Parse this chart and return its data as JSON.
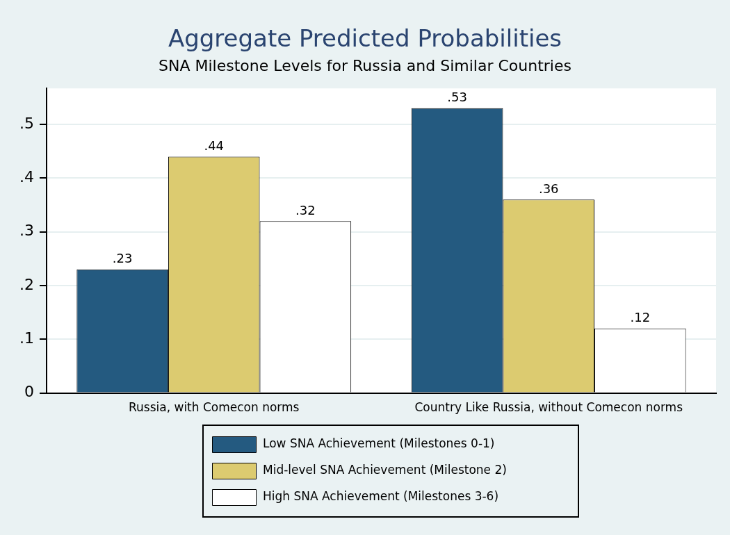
{
  "chart_data": {
    "type": "bar",
    "title": "Aggregate Predicted Probabilities",
    "subtitle": "SNA Milestone Levels for Russia and Similar Countries",
    "categories": [
      "Russia, with Comecon norms",
      "Country Like Russia, without Comecon norms"
    ],
    "series": [
      {
        "name": "Low SNA Achievement (Milestones 0-1)",
        "color": "#245a80",
        "values": [
          0.23,
          0.53
        ],
        "value_labels": [
          ".23",
          ".53"
        ]
      },
      {
        "name": "Mid-level SNA Achievement (Milestone 2)",
        "color": "#dccb70",
        "values": [
          0.44,
          0.36
        ],
        "value_labels": [
          ".44",
          ".36"
        ]
      },
      {
        "name": "High SNA Achievement (Milestones 3-6)",
        "color": "#ffffff",
        "values": [
          0.32,
          0.12
        ],
        "value_labels": [
          ".32",
          ".12"
        ]
      }
    ],
    "ylim": [
      0,
      0.567
    ],
    "yticks": [
      {
        "value": 0,
        "label": "0"
      },
      {
        "value": 0.1,
        "label": ".1"
      },
      {
        "value": 0.2,
        "label": ".2"
      },
      {
        "value": 0.3,
        "label": ".3"
      },
      {
        "value": 0.4,
        "label": ".4"
      },
      {
        "value": 0.5,
        "label": ".5"
      }
    ],
    "grid": "y",
    "legend": "bottom"
  }
}
